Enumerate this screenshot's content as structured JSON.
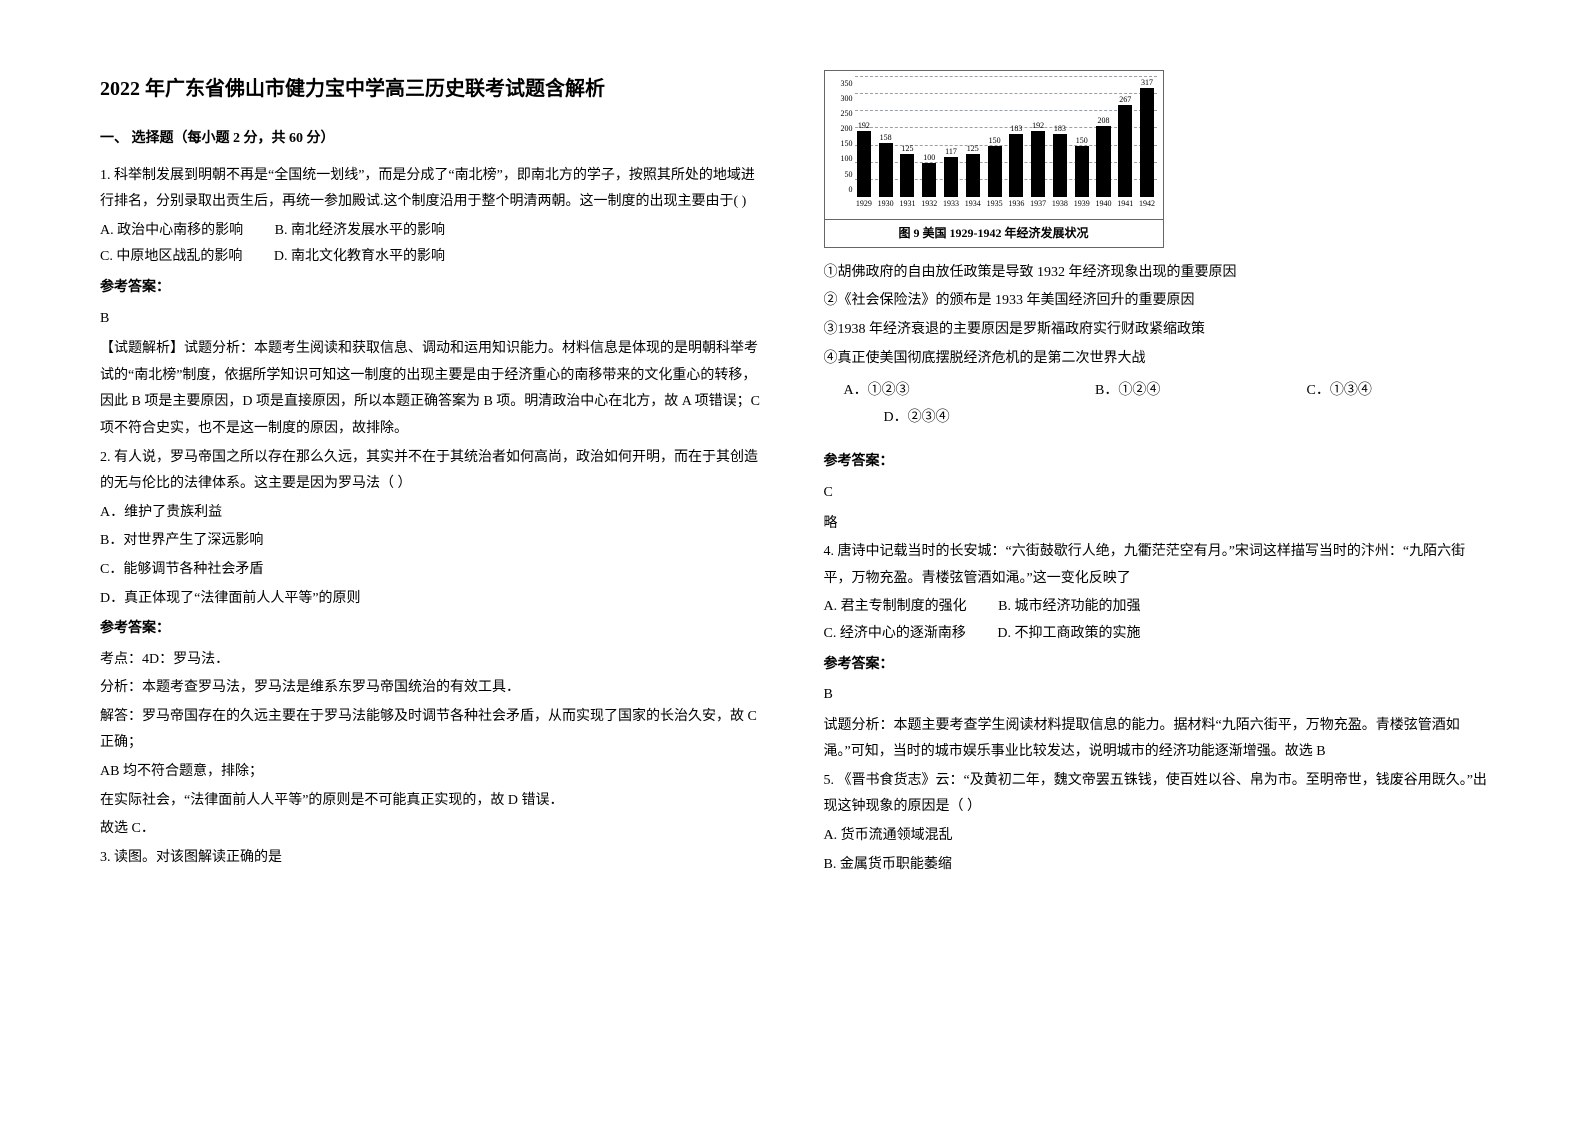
{
  "title": "2022 年广东省佛山市健力宝中学高三历史联考试题含解析",
  "section1": "一、 选择题（每小题 2 分，共 60 分）",
  "q1": {
    "stem": "1. 科举制发展到明朝不再是“全国统一划线”，而是分成了“南北榜”，即南北方的学子，按照其所处的地域进行排名，分别录取出贡生后，再统一参加殿试.这个制度沿用于整个明清两朝。这一制度的出现主要由于(            )",
    "A": "A. 政治中心南移的影响",
    "B": "B. 南北经济发展水平的影响",
    "C": "C. 中原地区战乱的影响",
    "D": "D. 南北文化教育水平的影响",
    "ansLabel": "参考答案：",
    "ans": "B",
    "explain": "【试题解析】试题分析：本题考生阅读和获取信息、调动和运用知识能力。材料信息是体现的是明朝科举考试的“南北榜”制度，依据所学知识可知这一制度的出现主要是由于经济重心的南移带来的文化重心的转移，因此 B 项是主要原因，D 项是直接原因，所以本题正确答案为 B 项。明清政治中心在北方，故 A 项错误；C 项不符合史实，也不是这一制度的原因，故排除。"
  },
  "q2": {
    "stem": "2. 有人说，罗马帝国之所以存在那么久远，其实并不在于其统治者如何高尚，政治如何开明，而在于其创造的无与伦比的法律体系。这主要是因为罗马法（    ）",
    "A": "A．维护了贵族利益",
    "B": "B．对世界产生了深远影响",
    "C": "C．能够调节各种社会矛盾",
    "D": "D．真正体现了“法律面前人人平等”的原则",
    "ansLabel": "参考答案：",
    "ex1": "考点：4D：罗马法．",
    "ex2": "分析：本题考查罗马法，罗马法是维系东罗马帝国统治的有效工具．",
    "ex3": "解答：罗马帝国存在的久远主要在于罗马法能够及时调节各种社会矛盾，从而实现了国家的长治久安，故 C 正确；",
    "ex4": "AB 均不符合题意，排除；",
    "ex5": "在实际社会，“法律面前人人平等”的原则是不可能真正实现的，故 D 错误．",
    "ex6": "故选 C．"
  },
  "q3": {
    "stem": "3. 读图。对该图解读正确的是",
    "chart": {
      "type": "bar",
      "categories": [
        "1929",
        "1930",
        "1931",
        "1932",
        "1933",
        "1934",
        "1935",
        "1936",
        "1937",
        "1938",
        "1939",
        "1940",
        "1941",
        "1942"
      ],
      "values": [
        192,
        158,
        125,
        100,
        117,
        125,
        150,
        183,
        192,
        183,
        150,
        208,
        267,
        317
      ],
      "bar_color": "#000000",
      "grid_color": "#9aa0a6",
      "background_color": "#ffffff",
      "ylim": [
        0,
        350
      ],
      "ytick_step": 50,
      "caption": "图 9  美国 1929-1942 年经济发展状况",
      "bar_width": 0.75,
      "label_fontsize": 8,
      "title_fontsize": 12
    },
    "s1": "①胡佛政府的自由放任政策是导致 1932 年经济现象出现的重要原因",
    "s2": "②《社会保险法》的颁布是 1933 年美国经济回升的重要原因",
    "s3": "③1938 年经济衰退的主要原因是罗斯福政府实行财政紧缩政策",
    "s4": "④真正使美国彻底摆脱经济危机的是第二次世界大战",
    "A": "A．①②③",
    "B": "B．①②④",
    "C": "C．①③④",
    "D": "D．②③④",
    "ansLabel": "参考答案：",
    "ans": "C",
    "ex": "略"
  },
  "q4": {
    "stem": "4. 唐诗中记载当时的长安城：“六街鼓歇行人绝，九衢茫茫空有月。”宋词这样描写当时的汴州：“九陌六街平，万物充盈。青楼弦管酒如渑。”这一变化反映了",
    "A": "A. 君主专制制度的强化",
    "B": "B. 城市经济功能的加强",
    "C": "C. 经济中心的逐渐南移",
    "D": "D. 不抑工商政策的实施",
    "ansLabel": "参考答案：",
    "ans": "B",
    "ex": "试题分析：本题主要考查学生阅读材料提取信息的能力。据材料“九陌六街平，万物充盈。青楼弦管酒如渑。”可知，当时的城市娱乐事业比较发达，说明城市的经济功能逐渐增强。故选 B"
  },
  "q5": {
    "stem": "5. 《晋书食货志》云：“及黄初二年，魏文帝罢五铢钱，使百姓以谷、帛为市。至明帝世，钱废谷用既久。”出现这钟现象的原因是（        ）",
    "A": "A. 货币流通领域混乱",
    "B": "B. 金属货币职能萎缩"
  }
}
